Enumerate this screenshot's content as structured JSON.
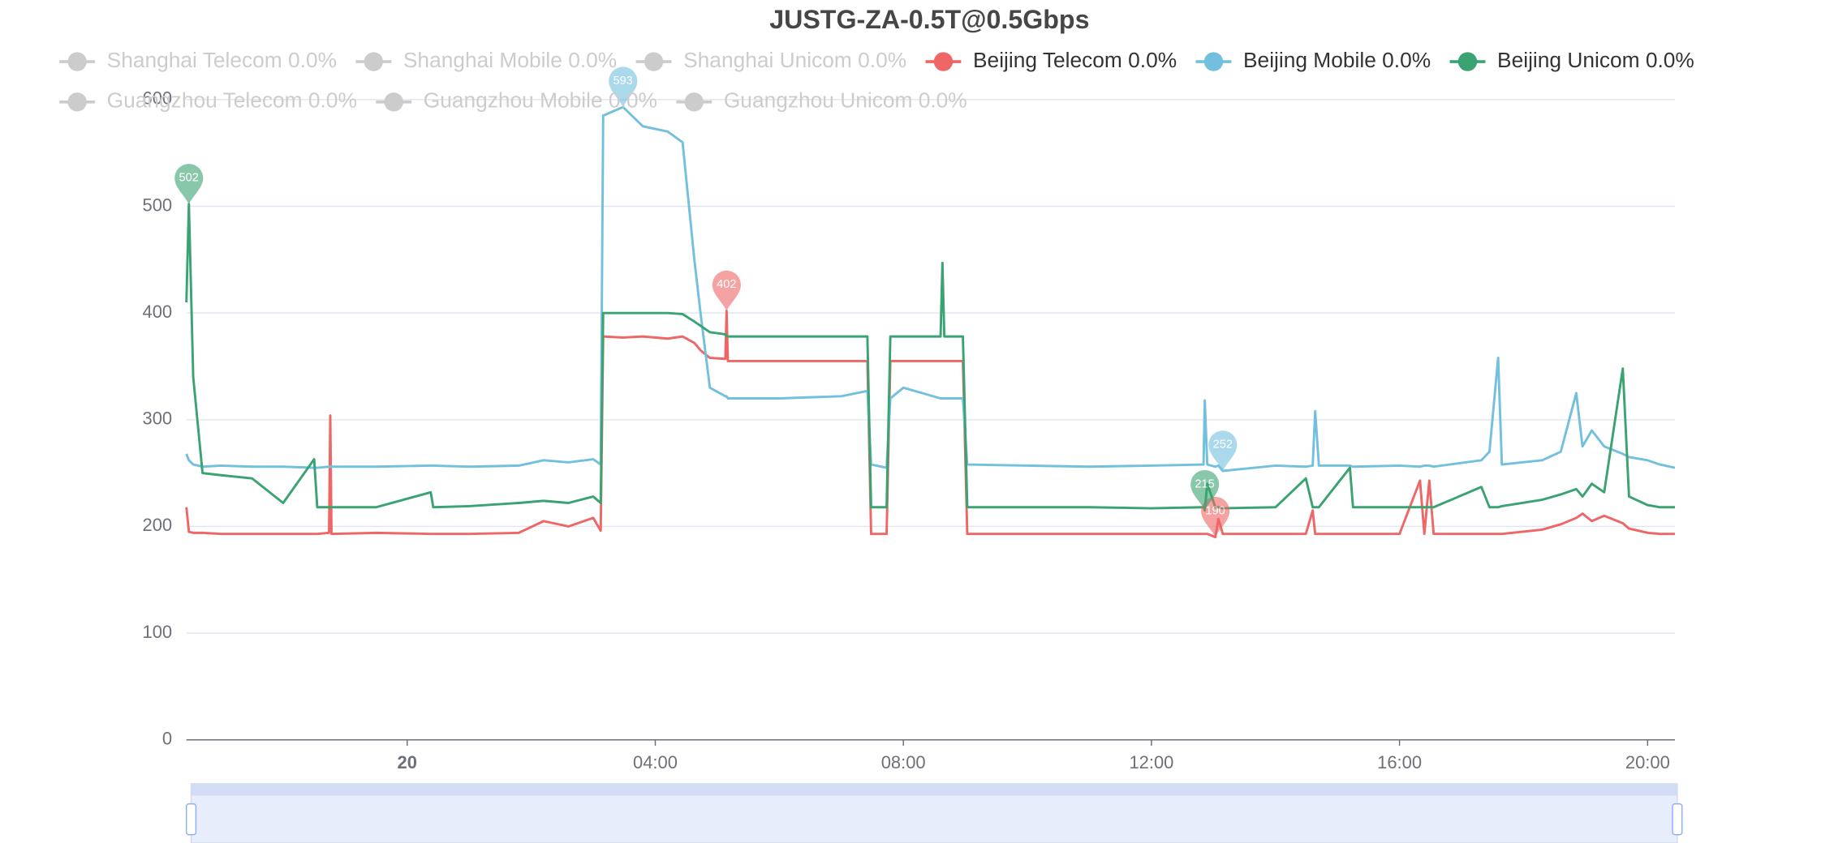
{
  "chart_data": {
    "type": "line",
    "title": "JUSTG-ZA-0.5T@0.5Gbps",
    "xlim": [
      -3.56,
      20.44
    ],
    "xticks": [
      {
        "value": 0,
        "label": "20"
      },
      {
        "value": 4,
        "label": "04:00"
      },
      {
        "value": 8,
        "label": "08:00"
      },
      {
        "value": 12,
        "label": "12:00"
      },
      {
        "value": 16,
        "label": "16:00"
      },
      {
        "value": 20,
        "label": "20:00"
      }
    ],
    "ylim": [
      0,
      600
    ],
    "yticks": [
      0,
      100,
      200,
      300,
      400,
      500,
      600
    ],
    "grid": true,
    "legend": "top",
    "x": [
      -3.56,
      -3.52,
      -3.45,
      -3.3,
      -3.0,
      -2.5,
      -2.0,
      -1.5,
      -1.45,
      -1.26,
      -1.24,
      -1.22,
      -0.5,
      0.38,
      0.42,
      1.0,
      1.8,
      2.2,
      2.6,
      3.0,
      3.12,
      3.16,
      3.48,
      3.8,
      4.2,
      4.44,
      4.63,
      4.73,
      4.88,
      5.13,
      5.15,
      5.17,
      6.0,
      7.0,
      7.42,
      7.48,
      7.73,
      7.79,
      8.0,
      8.6,
      8.63,
      8.66,
      8.96,
      9.03,
      10.0,
      11.0,
      12.0,
      12.84,
      12.86,
      12.9,
      13.03,
      13.08,
      13.15,
      14.0,
      14.49,
      14.6,
      14.64,
      14.7,
      15.2,
      15.25,
      16.0,
      16.33,
      16.4,
      16.48,
      16.55,
      17.32,
      17.45,
      17.59,
      17.65,
      18.3,
      18.6,
      18.85,
      18.95,
      19.1,
      19.3,
      19.6,
      19.7,
      20.0,
      20.2,
      20.44
    ],
    "series": [
      {
        "name": "Shanghai Telecom 0.0%",
        "color": "#ccc",
        "active": false
      },
      {
        "name": "Shanghai Mobile 0.0%",
        "color": "#ccc",
        "active": false
      },
      {
        "name": "Shanghai Unicom 0.0%",
        "color": "#ccc",
        "active": false
      },
      {
        "name": "Beijing Telecom 0.0%",
        "color": "#ee6666",
        "active": true,
        "values": [
          218,
          195,
          194,
          194,
          193,
          193,
          193,
          193,
          193,
          194,
          304,
          193,
          194,
          193,
          193,
          193,
          194,
          205,
          200,
          208,
          196,
          378,
          377,
          378,
          376,
          378,
          372,
          365,
          358,
          357,
          402,
          355,
          355,
          355,
          355,
          193,
          193,
          355,
          355,
          355,
          355,
          355,
          355,
          193,
          193,
          193,
          193,
          193,
          193,
          193,
          190,
          207,
          193,
          193,
          193,
          215,
          193,
          193,
          193,
          193,
          193,
          243,
          193,
          243,
          193,
          193,
          193,
          193,
          193,
          197,
          202,
          208,
          212,
          205,
          210,
          203,
          198,
          194,
          193,
          193
        ],
        "markers": [
          {
            "value": 402,
            "x": 5.15
          },
          {
            "value": 190,
            "x": 13.03
          }
        ]
      },
      {
        "name": "Beijing Mobile 0.0%",
        "color": "#73c0de",
        "active": true,
        "values": [
          268,
          262,
          258,
          256,
          257,
          256,
          256,
          255,
          255,
          256,
          256,
          256,
          256,
          257,
          257,
          256,
          257,
          262,
          260,
          263,
          258,
          585,
          593,
          575,
          570,
          560,
          450,
          400,
          330,
          322,
          322,
          320,
          320,
          322,
          327,
          258,
          255,
          320,
          330,
          320,
          320,
          320,
          320,
          258,
          257,
          256,
          257,
          258,
          318,
          258,
          256,
          257,
          252,
          257,
          256,
          257,
          308,
          257,
          257,
          256,
          257,
          256,
          257,
          257,
          256,
          262,
          270,
          358,
          258,
          262,
          270,
          325,
          275,
          290,
          275,
          268,
          265,
          262,
          258,
          255
        ],
        "markers": [
          {
            "value": 593,
            "x": 3.48
          },
          {
            "value": 252,
            "x": 13.15
          }
        ]
      },
      {
        "name": "Beijing Unicom 0.0%",
        "color": "#3ba272",
        "active": true,
        "values": [
          410,
          502,
          340,
          250,
          248,
          245,
          222,
          263,
          218,
          218,
          218,
          218,
          218,
          232,
          218,
          219,
          222,
          224,
          222,
          228,
          222,
          400,
          400,
          400,
          400,
          399,
          392,
          388,
          382,
          380,
          378,
          378,
          378,
          378,
          378,
          218,
          218,
          378,
          378,
          378,
          447,
          378,
          378,
          218,
          218,
          218,
          217,
          218,
          215,
          240,
          218,
          218,
          217,
          218,
          245,
          218,
          218,
          218,
          255,
          218,
          218,
          218,
          218,
          218,
          218,
          237,
          218,
          218,
          219,
          225,
          230,
          235,
          228,
          240,
          232,
          348,
          228,
          220,
          218,
          218
        ],
        "markers": [
          {
            "value": 502,
            "x": -3.52
          },
          {
            "value": 215,
            "x": 12.86
          }
        ]
      },
      {
        "name": "Guangzhou Telecom 0.0%",
        "color": "#ccc",
        "active": false
      },
      {
        "name": "Guangzhou Mobile 0.0%",
        "color": "#ccc",
        "active": false
      },
      {
        "name": "Guangzhou Unicom 0.0%",
        "color": "#ccc",
        "active": false
      }
    ]
  }
}
